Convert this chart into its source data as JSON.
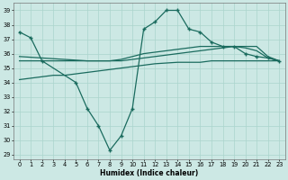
{
  "xlabel": "Humidex (Indice chaleur)",
  "background_color": "#cce8e4",
  "grid_color": "#aad4cc",
  "line_color": "#1a6b5e",
  "xlim": [
    -0.5,
    23.5
  ],
  "ylim": [
    28.7,
    39.5
  ],
  "yticks": [
    29,
    30,
    31,
    32,
    33,
    34,
    35,
    36,
    37,
    38,
    39
  ],
  "xticks": [
    0,
    1,
    2,
    3,
    4,
    5,
    6,
    7,
    8,
    9,
    10,
    11,
    12,
    13,
    14,
    15,
    16,
    17,
    18,
    19,
    20,
    21,
    22,
    23
  ],
  "line1_marked": {
    "x": [
      0,
      1,
      2,
      5,
      6,
      7,
      8,
      9,
      10,
      11,
      12,
      13,
      14,
      15,
      16,
      17,
      18,
      19,
      20,
      21,
      22,
      23
    ],
    "y": [
      37.5,
      37.1,
      35.5,
      34.0,
      32.2,
      31.0,
      29.3,
      30.3,
      32.2,
      37.7,
      38.2,
      39.0,
      39.0,
      37.7,
      37.5,
      36.8,
      36.5,
      36.5,
      36.0,
      35.8,
      35.7,
      35.5
    ]
  },
  "line2": {
    "x": [
      0,
      1,
      2,
      3,
      4,
      5,
      6,
      7,
      8,
      9,
      10,
      11,
      12,
      13,
      14,
      15,
      16,
      17,
      18,
      19,
      20,
      21,
      22,
      23
    ],
    "y": [
      35.8,
      35.75,
      35.7,
      35.65,
      35.6,
      35.55,
      35.5,
      35.5,
      35.5,
      35.6,
      35.8,
      36.0,
      36.1,
      36.2,
      36.3,
      36.4,
      36.5,
      36.5,
      36.5,
      36.5,
      36.4,
      36.2,
      35.7,
      35.5
    ]
  },
  "line3": {
    "x": [
      0,
      1,
      2,
      3,
      4,
      5,
      6,
      7,
      8,
      9,
      10,
      11,
      12,
      13,
      14,
      15,
      16,
      17,
      18,
      19,
      20,
      21,
      22,
      23
    ],
    "y": [
      35.5,
      35.5,
      35.5,
      35.5,
      35.5,
      35.5,
      35.5,
      35.5,
      35.5,
      35.5,
      35.6,
      35.7,
      35.8,
      35.9,
      36.0,
      36.1,
      36.2,
      36.3,
      36.4,
      36.5,
      36.5,
      36.5,
      35.8,
      35.5
    ]
  },
  "line4": {
    "x": [
      0,
      1,
      2,
      3,
      4,
      5,
      6,
      7,
      8,
      9,
      10,
      11,
      12,
      13,
      14,
      15,
      16,
      17,
      18,
      19,
      20,
      21,
      22,
      23
    ],
    "y": [
      34.2,
      34.3,
      34.4,
      34.5,
      34.5,
      34.6,
      34.7,
      34.8,
      34.9,
      35.0,
      35.1,
      35.2,
      35.3,
      35.35,
      35.4,
      35.4,
      35.4,
      35.5,
      35.5,
      35.5,
      35.5,
      35.5,
      35.5,
      35.5
    ]
  }
}
